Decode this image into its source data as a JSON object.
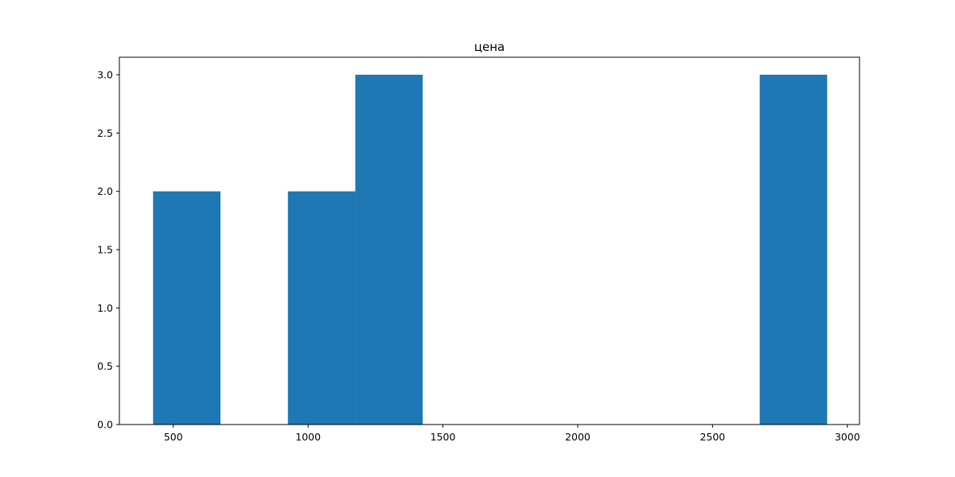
{
  "chart_data": {
    "type": "bar",
    "title": "цена",
    "xlabel": "",
    "ylabel": "",
    "xlim": [
      300,
      3045
    ],
    "ylim": [
      0,
      3.15
    ],
    "xticks": [
      500,
      1000,
      1500,
      2000,
      2500,
      3000
    ],
    "xtick_labels": [
      "500",
      "1000",
      "1500",
      "2000",
      "2500",
      "3000"
    ],
    "yticks": [
      0,
      0.5,
      1.0,
      1.5,
      2.0,
      2.5,
      3.0
    ],
    "ytick_labels": [
      "0.0",
      "0.5",
      "1.0",
      "1.5",
      "2.0",
      "2.5",
      "3.0"
    ],
    "grid": false,
    "bar_color": "#1f77b4",
    "bins": [
      {
        "x0": 425,
        "x1": 675,
        "count": 2
      },
      {
        "x0": 675,
        "x1": 925,
        "count": 0
      },
      {
        "x0": 925,
        "x1": 1175,
        "count": 2
      },
      {
        "x0": 1175,
        "x1": 1425,
        "count": 3
      },
      {
        "x0": 1425,
        "x1": 1675,
        "count": 0
      },
      {
        "x0": 1675,
        "x1": 1925,
        "count": 0
      },
      {
        "x0": 1925,
        "x1": 2175,
        "count": 0
      },
      {
        "x0": 2175,
        "x1": 2425,
        "count": 0
      },
      {
        "x0": 2425,
        "x1": 2675,
        "count": 0
      },
      {
        "x0": 2675,
        "x1": 2925,
        "count": 3
      }
    ]
  }
}
